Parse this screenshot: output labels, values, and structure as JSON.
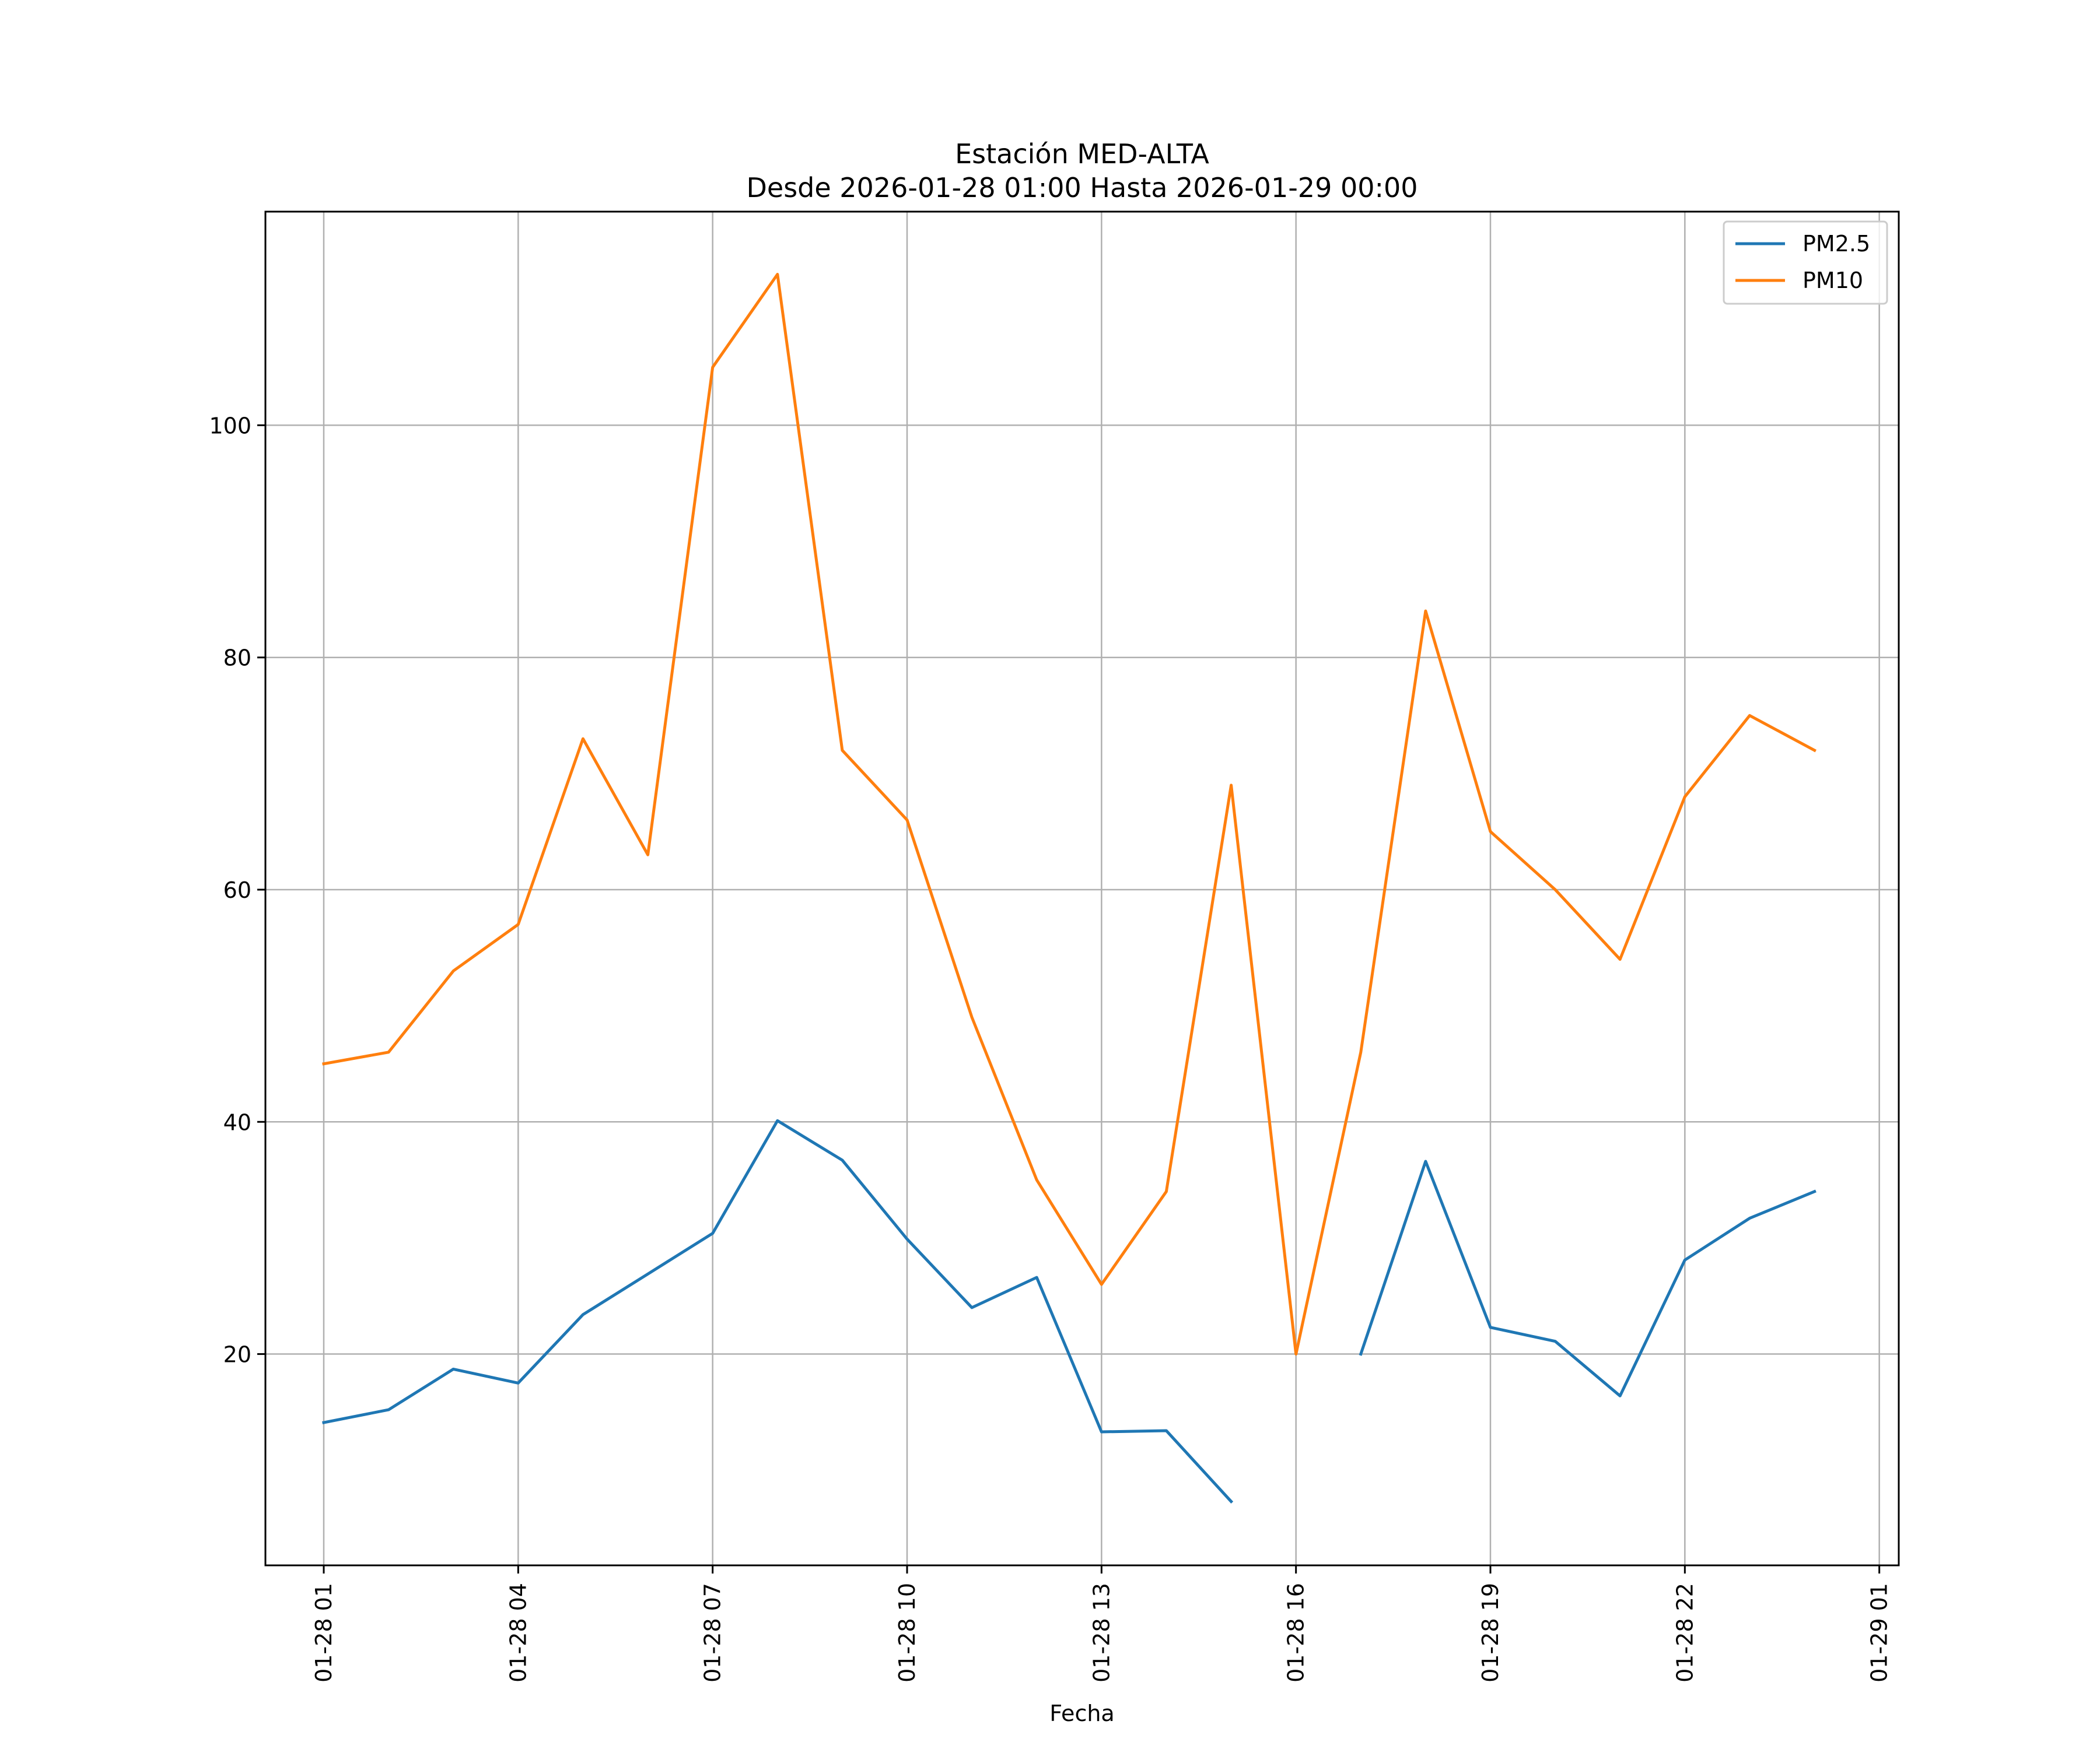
{
  "chart_data": {
    "type": "line",
    "title": "Estación MED-ALTA",
    "subtitle": "Desde 2026-01-28 01:00 Hasta 2026-01-29 00:00",
    "xlabel": "Fecha",
    "ylabel": "",
    "grid": true,
    "legend_position": "top-right",
    "x": [
      "01-28 01",
      "01-28 02",
      "01-28 03",
      "01-28 04",
      "01-28 05",
      "01-28 06",
      "01-28 07",
      "01-28 08",
      "01-28 09",
      "01-28 10",
      "01-28 11",
      "01-28 12",
      "01-28 13",
      "01-28 14",
      "01-28 15",
      "01-28 16",
      "01-28 17",
      "01-28 18",
      "01-28 19",
      "01-28 20",
      "01-28 21",
      "01-28 22",
      "01-28 23",
      "01-29 00"
    ],
    "x_range_hours": [
      -0.9,
      24.3
    ],
    "xticks": [
      {
        "hour": 0,
        "label": "01-28 01"
      },
      {
        "hour": 3,
        "label": "01-28 04"
      },
      {
        "hour": 6,
        "label": "01-28 07"
      },
      {
        "hour": 9,
        "label": "01-28 10"
      },
      {
        "hour": 12,
        "label": "01-28 13"
      },
      {
        "hour": 15,
        "label": "01-28 16"
      },
      {
        "hour": 18,
        "label": "01-28 19"
      },
      {
        "hour": 21,
        "label": "01-28 22"
      },
      {
        "hour": 24,
        "label": "01-29 01"
      }
    ],
    "ylim": [
      1.8,
      118.4
    ],
    "yticks": [
      {
        "value": 20,
        "label": "20"
      },
      {
        "value": 40,
        "label": "40"
      },
      {
        "value": 60,
        "label": "60"
      },
      {
        "value": 80,
        "label": "80"
      },
      {
        "value": 100,
        "label": "100"
      }
    ],
    "series": [
      {
        "name": "PM2.5",
        "color": "#1f77b4",
        "values": [
          14.1,
          15.2,
          18.7,
          17.5,
          23.4,
          26.9,
          30.4,
          40.1,
          36.7,
          29.9,
          24.0,
          26.6,
          13.3,
          13.4,
          7.3,
          null,
          20.0,
          36.6,
          22.3,
          21.1,
          16.4,
          28.1,
          31.7,
          34.0
        ]
      },
      {
        "name": "PM10",
        "color": "#ff7f0e",
        "values": [
          45,
          46,
          53,
          57,
          73,
          63,
          105,
          113,
          72,
          66,
          49,
          35,
          26,
          34,
          69,
          20,
          46,
          84,
          65,
          60,
          54,
          68,
          75,
          72
        ]
      }
    ]
  }
}
